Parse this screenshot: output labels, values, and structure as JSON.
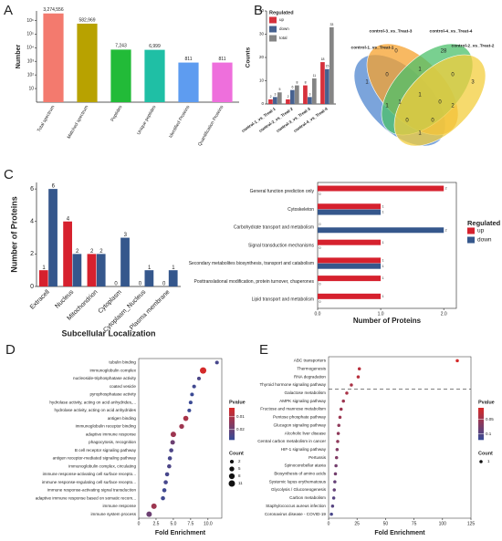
{
  "chart_data": [
    {
      "type": "bar",
      "panel": "A",
      "ylabel": "Number",
      "log_scale": true,
      "categories": [
        "Total spectrum",
        "Matched spectrum",
        "Peptides",
        "Unique peptides",
        "Identified Proteins",
        "Quantification Proteins"
      ],
      "values": [
        3274556,
        582969,
        7243,
        6999,
        811,
        811
      ],
      "value_labels": [
        "3,274,556",
        "582,969",
        "7,243",
        "6,999",
        "811",
        "811"
      ],
      "colors": [
        "#f37a6e",
        "#b8a200",
        "#22bb38",
        "#1fbfa5",
        "#5e9cf0",
        "#ee6fdc"
      ],
      "ylim": [
        1,
        5000000
      ],
      "yticks": [
        10,
        {
          "value": 100,
          "label": "10²"
        },
        {
          "value": 1000,
          "label": "10³"
        },
        {
          "value": 10000,
          "label": "10⁴"
        },
        {
          "value": 100000,
          "label": "10⁵"
        },
        {
          "value": 1000000,
          "label": "10⁶"
        }
      ]
    },
    {
      "type": "grouped_bar",
      "panel": "B",
      "ylabel": "Counts",
      "legend_title": "Regulated",
      "categories": [
        "control-1_vs_Treat-1",
        "control-2_vs_Treat-2",
        "control-3_vs_Treat-3",
        "control-4_vs_Treat-4"
      ],
      "series": [
        {
          "name": "up",
          "color": "#d6313c",
          "values": [
            2,
            2,
            8,
            18
          ]
        },
        {
          "name": "down",
          "color": "#46618f",
          "values": [
            3,
            6,
            3,
            15
          ]
        },
        {
          "name": "total",
          "color": "#858585",
          "values": [
            5,
            8,
            11,
            33
          ]
        }
      ],
      "ylim": [
        0,
        40
      ],
      "yticks": [
        0,
        10,
        20,
        30,
        40
      ]
    },
    {
      "type": "venn",
      "sets": [
        "control-1_vs_Treat-1",
        "control-3_vs_Treat-3",
        "control-4_vs_Treat-4",
        "control-2_vs_Treat-2"
      ],
      "colors": [
        "#4f86cf",
        "#f5a12e",
        "#4cc06b",
        "#f3cd3c"
      ],
      "region_values": [
        1,
        0,
        28,
        3,
        0,
        1,
        0,
        1,
        1,
        0,
        1,
        2,
        0,
        0,
        1
      ]
    },
    {
      "type": "grouped_bar",
      "panel": "C",
      "ylabel": "Number of Proteins",
      "xlabel": "Subcellular Localization",
      "categories": [
        "Extracell",
        "Nucleus",
        "Mitochondrion",
        "Cytoplasm",
        "Cytoplasm_Nucleus",
        "Plasma membrane"
      ],
      "series": [
        {
          "name": "up",
          "color": "#d6212e",
          "values": [
            1,
            4,
            2,
            0,
            0,
            0
          ]
        },
        {
          "name": "down",
          "color": "#35578c",
          "values": [
            6,
            2,
            2,
            3,
            1,
            1
          ]
        }
      ],
      "ylim": [
        0,
        6.4
      ],
      "yticks": [
        0,
        2,
        4,
        6
      ]
    },
    {
      "type": "hbar",
      "xlabel": "Number of Proteins",
      "legend_title": "Regulated",
      "categories": [
        "General function prediction only",
        "Cytoskeleton",
        "Carbohydrate transport and metabolism",
        "Signal transduction mechanisms",
        "Secondary metabolites biosynthesis, transport and catabolism",
        "Posttranslational modification, protein turnover, chaperones",
        "Lipid transport and metabolism"
      ],
      "series": [
        {
          "name": "up",
          "color": "#d6212e",
          "values": [
            2,
            1,
            0,
            1,
            1,
            1,
            1
          ]
        },
        {
          "name": "down",
          "color": "#35578c",
          "values": [
            0,
            1,
            2,
            0,
            1,
            0,
            0
          ]
        }
      ],
      "xlim": [
        0,
        2.2
      ],
      "xticks": [
        {
          "value": 0,
          "label": "0.0"
        },
        {
          "value": 1,
          "label": "1.0"
        },
        {
          "value": 2,
          "label": "2.0"
        }
      ]
    },
    {
      "type": "dot",
      "panel": "D",
      "xlabel": "Fold Enrichment",
      "colorbar_title": "Pvalue",
      "size_title": "Count",
      "categories": [
        "tubulin binding",
        "immunoglobulin complex",
        "nucleoside-triphosphatase activity",
        "coated vesicle",
        "pyrophosphatase activity",
        "hydrolase activity, acting on acid anhydrides,...",
        "hydrolase activity, acting on acid anhydrides",
        "antigen binding",
        "immunoglobulin receptor binding",
        "adaptive immune response",
        "phagocytosis, recognition",
        "B cell receptor signaling pathway",
        "antigen receptor-mediated signaling pathway",
        "immunoglobulin complex, circulating",
        "immune response-activating cell surface recepto...",
        "immune response-regulating cell surface recepto...",
        "immune response-activating signal transduction",
        "adaptive immune response based on somatic recom...",
        "immune response",
        "immune system process"
      ],
      "values": [
        11.3,
        9.3,
        8.7,
        8.0,
        7.7,
        7.5,
        7.3,
        6.8,
        6.2,
        5.0,
        4.9,
        4.7,
        4.5,
        4.4,
        4.1,
        3.9,
        3.7,
        3.5,
        2.2,
        1.5
      ],
      "counts": [
        2,
        11,
        2,
        2,
        2,
        2,
        2,
        6,
        5,
        7,
        4,
        3,
        3,
        3,
        3,
        3,
        3,
        3,
        7,
        7
      ],
      "pvalues": [
        0.026,
        0.003,
        0.025,
        0.027,
        0.028,
        0.028,
        0.028,
        0.01,
        0.012,
        0.012,
        0.02,
        0.025,
        0.026,
        0.025,
        0.026,
        0.026,
        0.027,
        0.027,
        0.012,
        0.02
      ],
      "color_low": "#d42a2a",
      "color_high": "#3b4a94",
      "colorbar_lim": [
        0.003,
        0.028
      ],
      "colorbar_ticks": [
        0.01,
        0.02
      ],
      "size_legend": [
        2,
        5,
        8,
        11
      ],
      "xlim": [
        0,
        12
      ],
      "xticks": [
        0,
        2.5,
        {
          "value": 5,
          "label": "5.0"
        },
        7.5,
        {
          "value": 10,
          "label": "10.0"
        }
      ]
    },
    {
      "type": "dot",
      "panel": "E",
      "xlabel": "Fold Enrichment",
      "colorbar_title": "Pvalue",
      "size_title": "Count",
      "divider": true,
      "categories": [
        "ABC transporters",
        "Thermogenesis",
        "RNA degradation",
        "Thyroid hormone signaling pathway",
        "Galactose metabolism",
        "AMPK signaling pathway",
        "Fructose and mannose metabolism",
        "Pentose phosphate pathway",
        "Glucagon signaling pathway",
        "Alcoholic liver disease",
        "Central carbon metabolism in cancer",
        "HIF-1 signaling pathway",
        "Pertussis",
        "Spinocerebellar ataxia",
        "Biosynthesis of amino acids",
        "Systemic lupus erythematosus",
        "Glycolysis / Gluconeogenesis",
        "Carbon metabolism",
        "Staphylococcus aureus infection",
        "Coronavirus disease - COVID-19"
      ],
      "values": [
        113,
        27,
        26,
        20,
        16,
        13,
        11,
        10,
        9,
        8.5,
        8,
        7.5,
        7,
        6.5,
        6,
        5.5,
        5,
        4.5,
        3.5,
        2.5
      ],
      "counts": [
        1,
        1,
        1,
        1,
        1,
        1,
        1,
        1,
        1,
        1,
        1,
        1,
        1,
        1,
        1,
        1,
        1,
        1,
        1,
        1
      ],
      "pvalues": [
        0.01,
        0.03,
        0.03,
        0.04,
        0.04,
        0.05,
        0.05,
        0.05,
        0.06,
        0.06,
        0.06,
        0.07,
        0.07,
        0.08,
        0.08,
        0.09,
        0.09,
        0.1,
        0.1,
        0.11
      ],
      "color_low": "#d42a2a",
      "color_high": "#3b4a94",
      "colorbar_lim": [
        0.01,
        0.12
      ],
      "colorbar_ticks": [
        0.05,
        0.1
      ],
      "size_legend": [
        1
      ],
      "xlim": [
        0,
        125
      ],
      "xticks": [
        0,
        25,
        50,
        75,
        100,
        125
      ]
    }
  ]
}
